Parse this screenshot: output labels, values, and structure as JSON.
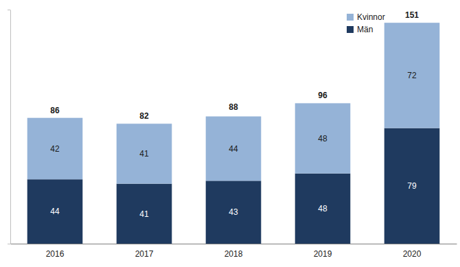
{
  "chart_data": {
    "type": "bar",
    "stacked": true,
    "data_labels": true,
    "tick_labels": "x",
    "grid": false,
    "legend": "top-right",
    "categories": [
      "2016",
      "2017",
      "2018",
      "2019",
      "2020"
    ],
    "series": [
      {
        "name": "Män",
        "color": "#1f3a5f",
        "values": [
          44,
          41,
          43,
          48,
          79
        ]
      },
      {
        "name": "Kvinnor",
        "color": "#95b3d7",
        "values": [
          42,
          41,
          44,
          48,
          72
        ]
      }
    ],
    "totals": [
      86,
      82,
      88,
      96,
      151
    ],
    "ylim": [
      0,
      160
    ],
    "yticks": [
      0,
      160
    ]
  }
}
